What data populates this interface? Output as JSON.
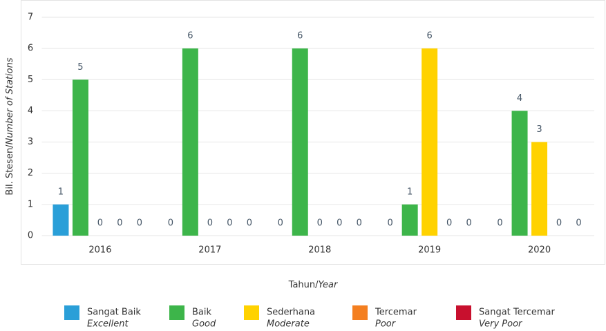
{
  "chart_data": {
    "type": "bar",
    "y_label": "Bil. Stesen/",
    "y_label_en": "Number of Stations",
    "x_label": "Tahun/",
    "x_label_en": "Year",
    "categories": [
      "2016",
      "2017",
      "2018",
      "2019",
      "2020"
    ],
    "series": [
      {
        "name": "Sangat Baik",
        "name_en": "Excellent",
        "color": "#2a9fd8",
        "values": [
          1,
          0,
          0,
          0,
          0
        ]
      },
      {
        "name": "Baik",
        "name_en": "Good",
        "color": "#3db54a",
        "values": [
          5,
          6,
          6,
          1,
          4
        ]
      },
      {
        "name": "Sederhana",
        "name_en": "Moderate",
        "color": "#ffd200",
        "values": [
          0,
          0,
          0,
          6,
          3
        ]
      },
      {
        "name": "Tercemar",
        "name_en": "Poor",
        "color": "#f47f20",
        "values": [
          0,
          0,
          0,
          0,
          0
        ]
      },
      {
        "name": "Sangat Tercemar",
        "name_en": "Very Poor",
        "color": "#c8102e",
        "values": [
          0,
          0,
          0,
          0,
          0
        ]
      }
    ],
    "ylim": [
      0,
      7
    ],
    "yticks": [
      0,
      1,
      2,
      3,
      4,
      5,
      6,
      7
    ],
    "grid": true
  }
}
